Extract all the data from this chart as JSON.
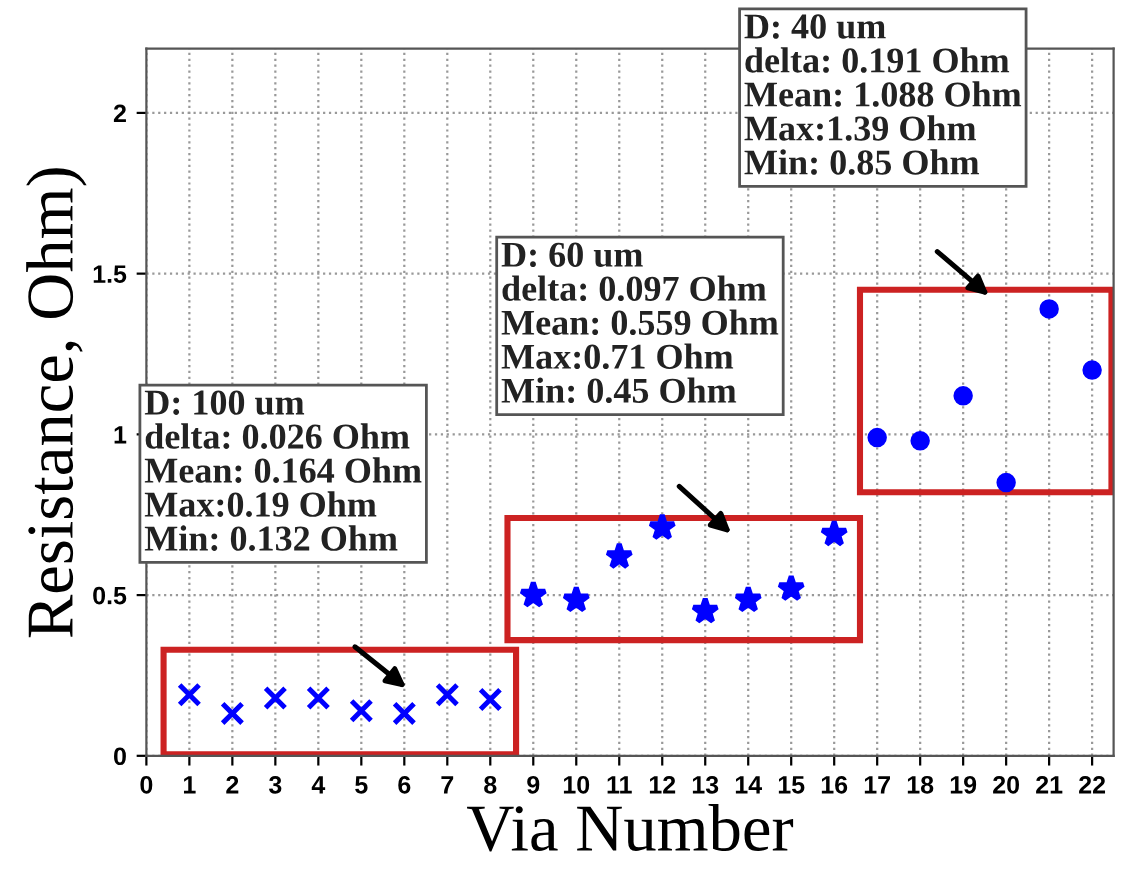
{
  "chart_data": {
    "type": "scatter",
    "xlabel": "Via Number",
    "ylabel": "Resistance, Ohm)",
    "series": [
      {
        "color": "#0000ff",
        "marker": "cross",
        "x": [
          1,
          2,
          3,
          4,
          5,
          6,
          7,
          8
        ],
        "values": [
          0.19,
          0.132,
          0.18,
          0.18,
          0.14,
          0.132,
          0.19,
          0.175
        ]
      },
      {
        "color": "#0000ff",
        "marker": "star",
        "x": [
          9,
          10,
          11,
          12,
          13,
          14,
          15,
          16
        ],
        "values": [
          0.5,
          0.485,
          0.62,
          0.71,
          0.45,
          0.485,
          0.52,
          0.69
        ]
      },
      {
        "color": "#0000ff",
        "marker": "circle",
        "x": [
          17,
          18,
          19,
          20,
          21,
          22
        ],
        "values": [
          0.99,
          0.98,
          1.12,
          0.85,
          1.39,
          1.2
        ]
      }
    ],
    "annotations": [
      "D: 100 um\ndelta: 0.026 Ohm\nMean: 0.164 Ohm\nMax:0.19 Ohm\nMin: 0.132 Ohm",
      "D: 60 um\ndelta: 0.097 Ohm\nMean: 0.559 Ohm\nMax:0.71 Ohm\nMin: 0.45 Ohm",
      "D: 40 um\ndelta: 0.191 Ohm\nMean: 1.088 Ohm\nMax:1.39 Ohm\nMin: 0.85 Ohm"
    ],
    "xlim": [
      0,
      22.5
    ],
    "ylim": [
      0,
      2.2
    ],
    "xticks": [
      0,
      1,
      2,
      3,
      4,
      5,
      6,
      7,
      8,
      9,
      10,
      11,
      12,
      13,
      14,
      15,
      16,
      17,
      18,
      19,
      20,
      21,
      22
    ],
    "yticks": [
      0,
      0.5,
      1,
      1.5,
      2
    ],
    "grid": true
  }
}
